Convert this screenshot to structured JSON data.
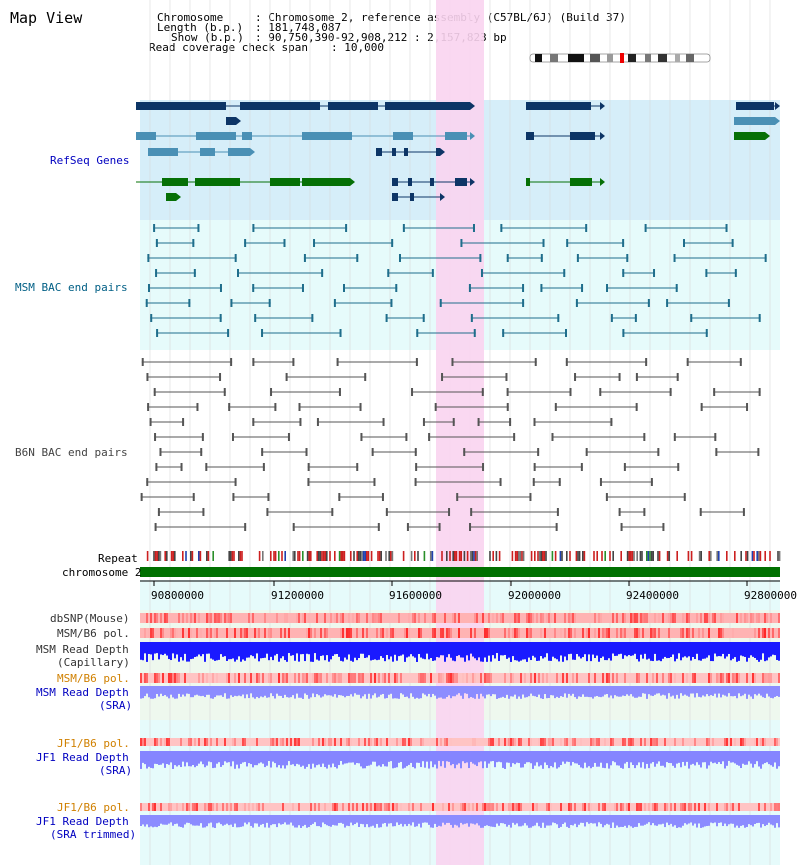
{
  "title": "Map View",
  "header": {
    "chromosome_key": "Chromosome",
    "chromosome_val": ": Chromosome 2, reference assembly (C57BL/6J) (Build 37)",
    "length_key": "Length (b.p.)",
    "length_val": ": 181,748,087",
    "show_key": "Show (b.p.)",
    "show_val": ": 90,750,390-92,908,212 : 2,157,823 bp",
    "coverage_key": "Read coverage check span",
    "coverage_val": ": 10,000"
  },
  "tracks": {
    "refseq": "RefSeq Genes",
    "msm_bac": "MSM BAC end pairs",
    "b6n_bac": "B6N BAC end pairs",
    "repeat": "Repeat",
    "chromosome": "chromosome 2",
    "dbsnp": "dbSNP(Mouse)",
    "msm_b6_pol": "MSM/B6 pol.",
    "msm_depth_cap_1": "MSM Read Depth",
    "msm_depth_cap_2": "(Capillary)",
    "msm_b6_pol_sra": "MSM/B6 pol.",
    "msm_depth_sra_1": "MSM Read Depth",
    "msm_depth_sra_2": "(SRA)",
    "jf1_b6_pol": "JF1/B6 pol.",
    "jf1_depth_1": "JF1 Read Depth",
    "jf1_depth_2": "(SRA)",
    "jf1_b6_pol_trim": "JF1/B6 pol.",
    "jf1_trim_1": "JF1 Read Depth",
    "jf1_trim_2": "(SRA trimmed)"
  },
  "axis_ticks": [
    "90800000",
    "91200000",
    "91600000",
    "92000000",
    "92400000",
    "92800000"
  ],
  "colors": {
    "refseq_bg": "#d6eef9",
    "gene_dark": "#0d3566",
    "gene_mid": "#4a90b5",
    "gene_green": "#067006",
    "highlight": "#f9d4f0",
    "lower_bg": "#eef8ee",
    "chromosome_bar": "#007000",
    "depth_blue": "#1a1aff",
    "depth_light": "#8c8cff",
    "label_blue": "#0000c0",
    "label_teal": "#005f85",
    "label_orange": "#d08000"
  }
}
